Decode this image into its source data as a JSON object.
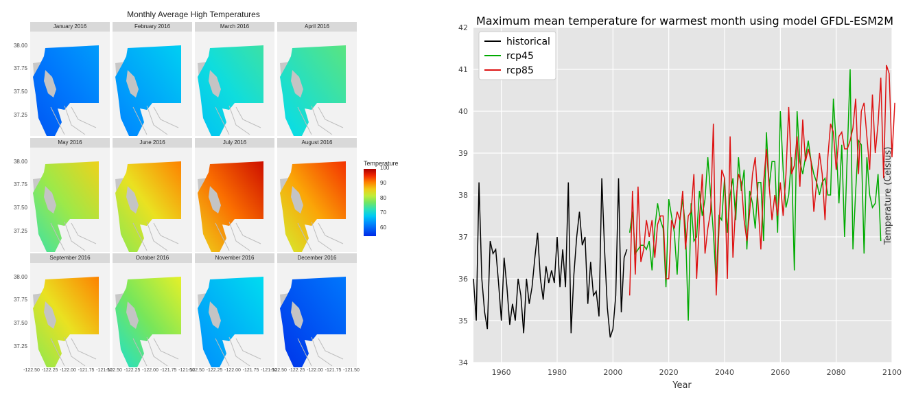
{
  "chart_data": [
    {
      "type": "heatmap",
      "title": "Monthly Average High Temperatures",
      "facets": [
        {
          "label": "January 2016",
          "level": 62
        },
        {
          "label": "February 2016",
          "level": 66
        },
        {
          "label": "March 2016",
          "level": 71
        },
        {
          "label": "April 2016",
          "level": 73
        },
        {
          "label": "May 2016",
          "level": 80
        },
        {
          "label": "June 2016",
          "level": 85
        },
        {
          "label": "July 2016",
          "level": 92
        },
        {
          "label": "August 2016",
          "level": 89
        },
        {
          "label": "September 2016",
          "level": 85
        },
        {
          "label": "October 2016",
          "level": 78
        },
        {
          "label": "November 2016",
          "level": 67
        },
        {
          "label": "December 2016",
          "level": 59
        }
      ],
      "y_ticks": [
        "38.00",
        "37.75",
        "37.50",
        "37.25"
      ],
      "x_ticks": [
        "-122.50",
        "-122.25",
        "-122.00",
        "-121.75",
        "-121.50"
      ],
      "legend": {
        "title": "Temperature",
        "ticks": [
          100,
          90,
          80,
          70,
          60
        ],
        "range": [
          55,
          100
        ]
      }
    },
    {
      "type": "line",
      "title": "Maximum mean temperature for warmest month using model GFDL-ESM2M",
      "xlabel": "Year",
      "ylabel": "Temperature (Celsius)",
      "xlim": [
        1950,
        2100
      ],
      "ylim": [
        34,
        42
      ],
      "x_ticks": [
        1960,
        1980,
        2000,
        2020,
        2040,
        2060,
        2080,
        2100
      ],
      "y_ticks": [
        34,
        35,
        36,
        37,
        38,
        39,
        40,
        41,
        42
      ],
      "legend_position": "top-left",
      "series": [
        {
          "name": "historical",
          "color": "#000000",
          "x_start": 1950,
          "values": [
            36.0,
            35.0,
            38.3,
            36.0,
            35.2,
            34.8,
            36.9,
            36.6,
            36.7,
            35.9,
            35.0,
            36.5,
            35.8,
            34.9,
            35.4,
            35.0,
            36.0,
            35.6,
            34.7,
            36.0,
            35.4,
            35.8,
            36.5,
            37.1,
            36.0,
            35.5,
            36.3,
            35.9,
            36.2,
            35.9,
            37.0,
            35.8,
            36.7,
            35.8,
            38.3,
            34.7,
            36.1,
            37.0,
            37.6,
            36.8,
            37.0,
            35.4,
            36.4,
            35.6,
            35.7,
            35.1,
            38.4,
            36.7,
            35.3,
            34.6,
            34.8,
            35.6,
            38.4,
            35.2,
            36.5,
            36.7
          ]
        },
        {
          "name": "rcp45",
          "color": "#00aa00",
          "x_start": 2006,
          "values": [
            37.1,
            37.6,
            36.6,
            36.7,
            36.8,
            36.8,
            36.7,
            36.9,
            36.2,
            37.2,
            37.8,
            37.4,
            37.2,
            35.8,
            37.9,
            37.5,
            37.1,
            36.1,
            37.4,
            37.9,
            37.2,
            35.0,
            37.8,
            36.9,
            37.0,
            38.1,
            37.5,
            37.9,
            38.9,
            38.0,
            37.1,
            35.9,
            37.5,
            37.4,
            38.4,
            37.1,
            38.0,
            38.4,
            37.4,
            38.9,
            38.1,
            38.6,
            36.7,
            38.1,
            37.8,
            37.2,
            38.3,
            38.3,
            36.9,
            39.5,
            38.2,
            38.8,
            38.8,
            37.1,
            40.0,
            38.6,
            37.7,
            38.0,
            38.9,
            36.2,
            40.0,
            38.8,
            38.5,
            38.9,
            39.3,
            38.8,
            38.5,
            38.3,
            38.0,
            38.3,
            38.4,
            38.0,
            38.0,
            40.3,
            39.2,
            37.8,
            39.2,
            37.0,
            39.0,
            41.0,
            36.7,
            38.1,
            39.3,
            39.2,
            36.6,
            38.9,
            38.0,
            37.7,
            37.8,
            38.5,
            36.9
          ]
        },
        {
          "name": "rcp85",
          "color": "#dd1111",
          "x_start": 2006,
          "values": [
            35.6,
            38.1,
            36.1,
            38.2,
            36.4,
            36.7,
            37.4,
            37.0,
            37.4,
            36.5,
            37.3,
            37.5,
            37.5,
            36.0,
            36.0,
            37.4,
            37.2,
            37.6,
            37.4,
            38.1,
            36.7,
            37.5,
            37.6,
            38.5,
            36.0,
            37.4,
            38.5,
            36.6,
            37.2,
            37.6,
            39.7,
            35.6,
            37.2,
            38.6,
            38.4,
            36.0,
            39.4,
            36.5,
            37.8,
            38.5,
            38.3,
            37.4,
            36.9,
            37.6,
            38.5,
            38.9,
            37.8,
            36.7,
            38.3,
            39.1,
            38.2,
            37.4,
            38.0,
            37.5,
            38.3,
            37.5,
            38.5,
            40.1,
            38.5,
            38.7,
            39.4,
            38.2,
            39.8,
            38.8,
            39.1,
            38.8,
            37.6,
            38.3,
            39.0,
            38.5,
            37.4,
            38.9,
            39.7,
            39.5,
            38.6,
            39.4,
            39.5,
            39.1,
            39.1,
            39.3,
            39.6,
            40.3,
            38.5,
            40.0,
            40.2,
            39.4,
            38.6,
            40.4,
            39.0,
            39.7,
            40.8,
            38.4,
            41.1,
            40.9,
            38.9,
            40.2
          ]
        }
      ]
    }
  ]
}
